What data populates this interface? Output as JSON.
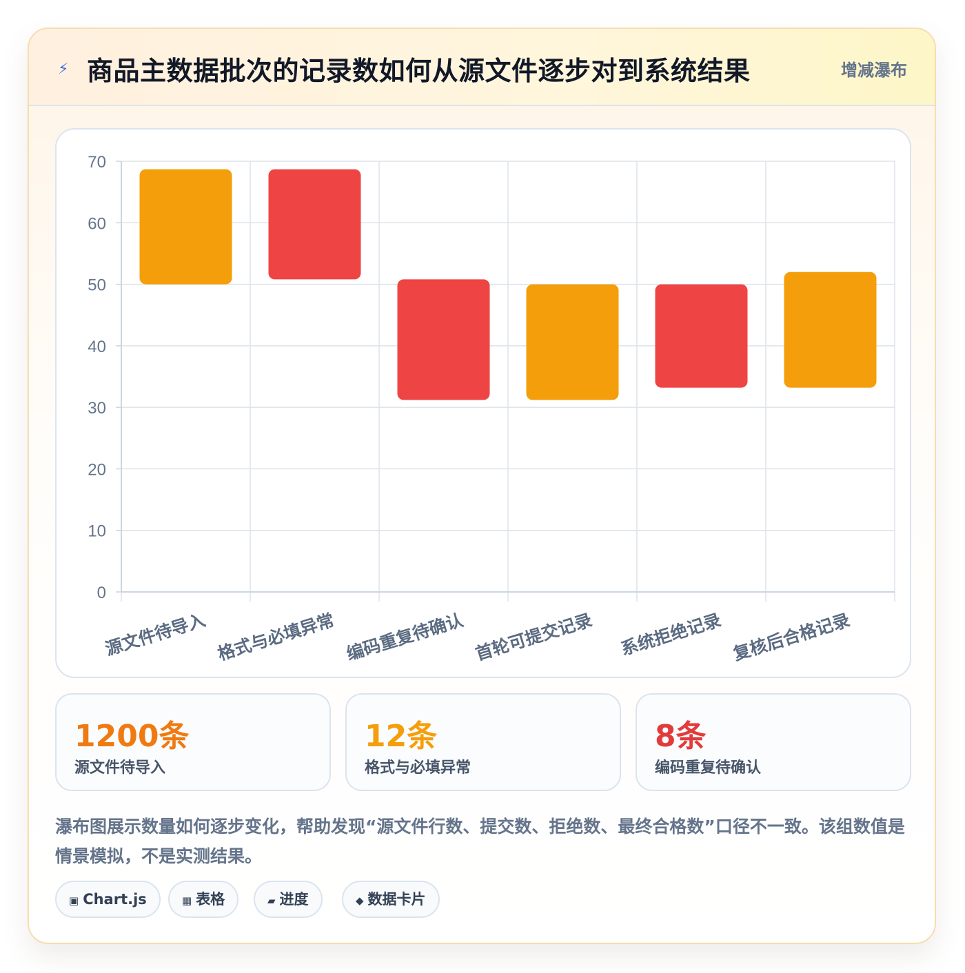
{
  "header": {
    "icon": "bolt-icon",
    "title": "商品主数据批次的记录数如何从源文件逐步对到系统结果",
    "tag": "增减瀑布"
  },
  "chart_data": {
    "type": "bar",
    "subtype": "floating-waterfall",
    "categories": [
      "源文件待导入",
      "格式与必填异常",
      "编码重复待确认",
      "首轮可提交记录",
      "系统拒绝记录",
      "复核后合格记录"
    ],
    "ranges": [
      [
        50,
        68.7
      ],
      [
        50.8,
        68.7
      ],
      [
        31.2,
        50.8
      ],
      [
        31.2,
        50
      ],
      [
        33.2,
        50
      ],
      [
        33.2,
        52
      ]
    ],
    "colors": [
      "#f49e0b",
      "#ef4444",
      "#ef4444",
      "#f49e0b",
      "#ef4444",
      "#f49e0b"
    ],
    "ylim": [
      0,
      70
    ],
    "yticks": [
      0,
      10,
      20,
      30,
      40,
      50,
      60,
      70
    ],
    "grid": true,
    "xlabel": "",
    "ylabel": ""
  },
  "stats": [
    {
      "value": "1200条",
      "label": "源文件待导入",
      "color": "#f07a12"
    },
    {
      "value": "12条",
      "label": "格式与必填异常",
      "color": "#f59e0b"
    },
    {
      "value": "8条",
      "label": "编码重复待确认",
      "color": "#e23b3b"
    }
  ],
  "description": "瀑布图展示数量如何逐步变化，帮助发现“源文件行数、提交数、拒绝数、最终合格数”口径不一致。该组数值是情景模拟，不是实测结果。",
  "chips": [
    {
      "icon": "▣",
      "label": "Chart.js"
    },
    {
      "icon": "▦",
      "label": "表格"
    },
    {
      "icon": "▰",
      "label": "进度"
    },
    {
      "icon": "◆",
      "label": "数据卡片"
    }
  ]
}
